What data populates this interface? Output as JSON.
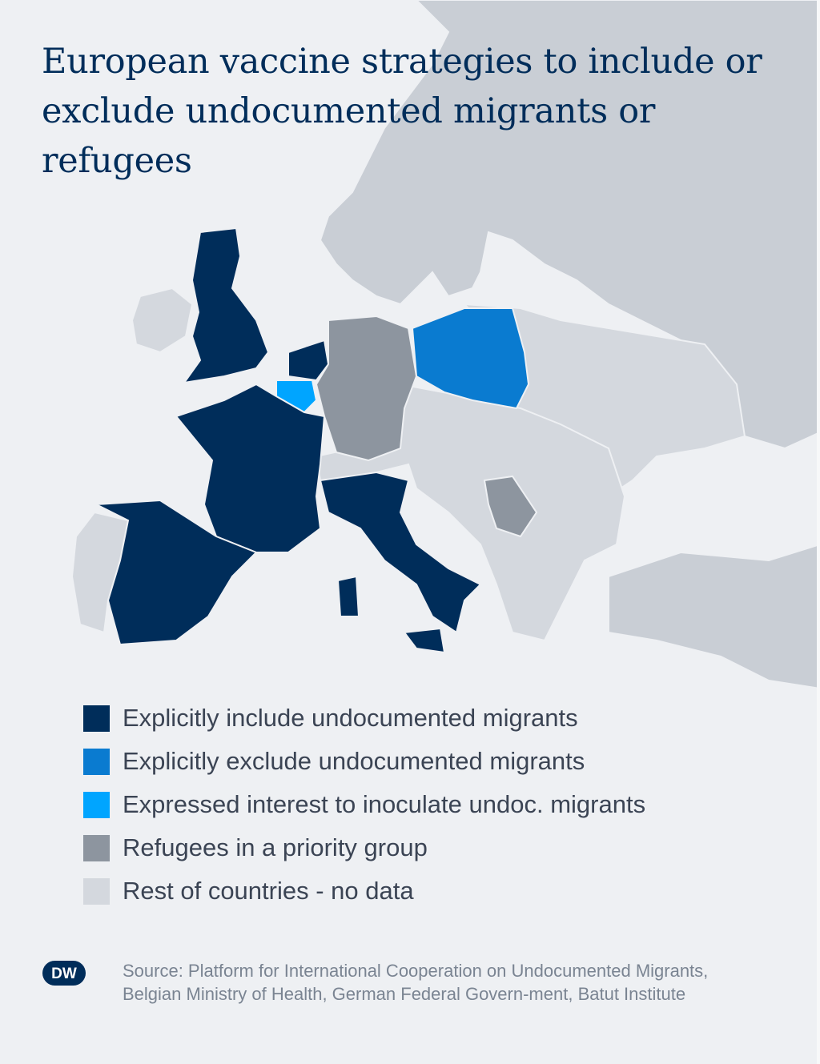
{
  "title": "European vaccine strategies to include or exclude undocumented migrants or refugees",
  "colors": {
    "background": "#eef0f3",
    "include": "#002d5a",
    "exclude": "#0a7bd0",
    "interest": "#00a5ff",
    "priority": "#8d959f",
    "no_data": "#d4d8de",
    "non_europe": "#c9ced5"
  },
  "legend": [
    {
      "label": "Explicitly include undocumented migrants",
      "color": "#002d5a"
    },
    {
      "label": "Explicitly exclude undocumented migrants",
      "color": "#0a7bd0"
    },
    {
      "label": "Expressed interest to inoculate undoc. migrants",
      "color": "#00a5ff"
    },
    {
      "label": "Refugees in a priority group",
      "color": "#8d959f"
    },
    {
      "label": "Rest of countries - no data",
      "color": "#d4d8de"
    }
  ],
  "map_data": {
    "include": [
      "United Kingdom",
      "Netherlands",
      "France",
      "Spain",
      "Italy"
    ],
    "exclude": [
      "Poland"
    ],
    "interest": [
      "Belgium"
    ],
    "priority": [
      "Germany",
      "Serbia"
    ]
  },
  "logo": {
    "text": "DW"
  },
  "source": "Source: Platform for International Cooperation on Undocumented Migrants, Belgian Ministry of Health, German Federal Govern-ment, Batut Institute"
}
